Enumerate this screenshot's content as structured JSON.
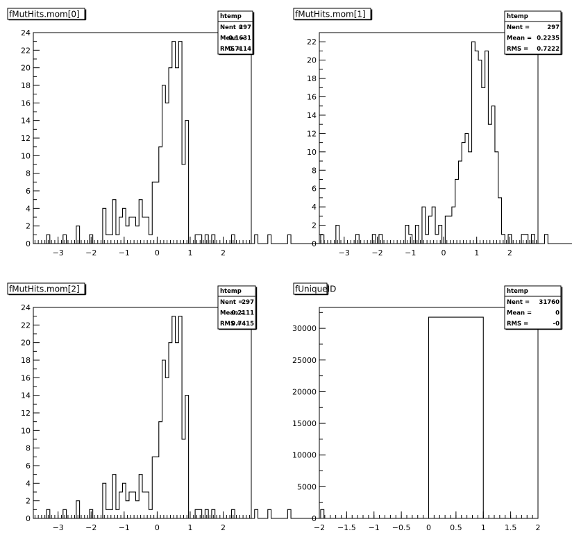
{
  "chart_data": [
    {
      "type": "histogram",
      "title": "fMutHits.mom[0]",
      "stats": {
        "name": "htemp",
        "nent_label": "Nent",
        "nent": "297",
        "mean_label": "Mean",
        "mean": "0.1631",
        "rms_label": "RMS",
        "rms": "0.7114"
      },
      "xlim": [
        -3.75,
        2.85
      ],
      "ylim": [
        0,
        24
      ],
      "xticks": [
        -3,
        -2,
        -1,
        0,
        1,
        2
      ],
      "yticks": [
        0,
        2,
        4,
        6,
        8,
        10,
        12,
        14,
        16,
        18,
        20,
        22,
        24
      ],
      "bins": {
        "start": -3.35,
        "width": 0.1,
        "counts": [
          1,
          0,
          0,
          0,
          0,
          1,
          0,
          0,
          0,
          2,
          0,
          0,
          0,
          1,
          0,
          0,
          0,
          4,
          1,
          1,
          5,
          1,
          3,
          4,
          2,
          3,
          3,
          2,
          5,
          3,
          3,
          1,
          7,
          7,
          11,
          18,
          16,
          20,
          23,
          20,
          23,
          9,
          14,
          0,
          0,
          1,
          1,
          0,
          1,
          0,
          1,
          0,
          0,
          0,
          0,
          0,
          1,
          0,
          0,
          0,
          0,
          0,
          0,
          1,
          0,
          0,
          0,
          1,
          0,
          0,
          0,
          0,
          0,
          1,
          0,
          0,
          0,
          0,
          0,
          0,
          0,
          0,
          0,
          1
        ]
      }
    },
    {
      "type": "histogram",
      "title": "fMutHits.mom[1]",
      "stats": {
        "name": "htemp",
        "nent_label": "Nent",
        "nent": "297",
        "mean_label": "Mean",
        "mean": "0.2235",
        "rms_label": "RMS",
        "rms": "0.7222"
      },
      "xlim": [
        -3.75,
        2.85
      ],
      "ylim": [
        0,
        23
      ],
      "xticks": [
        -3,
        -2,
        -1,
        0,
        1,
        2
      ],
      "yticks": [
        0,
        2,
        4,
        6,
        8,
        10,
        12,
        14,
        16,
        18,
        20,
        22
      ],
      "bins": {
        "start": -3.25,
        "width": 0.1,
        "counts": [
          2,
          0,
          0,
          0,
          0,
          0,
          1,
          0,
          0,
          0,
          0,
          1,
          0,
          1,
          0,
          0,
          0,
          0,
          0,
          0,
          0,
          2,
          1,
          0,
          2,
          0,
          4,
          1,
          3,
          4,
          1,
          2,
          0,
          3,
          3,
          4,
          7,
          9,
          11,
          12,
          10,
          22,
          21,
          20,
          17,
          21,
          13,
          15,
          10,
          5,
          1,
          0,
          1,
          0,
          0,
          0,
          1,
          1,
          0,
          1,
          0,
          0,
          0,
          1,
          0,
          0,
          0,
          0,
          0,
          0,
          0,
          0,
          1,
          0,
          0,
          0,
          0,
          0,
          1
        ]
      }
    },
    {
      "type": "histogram",
      "title": "fMutHits.mom[2]",
      "stats": {
        "name": "htemp",
        "nent_label": "Nent",
        "nent": "297",
        "mean_label": "Mean",
        "mean": "0.2111",
        "rms_label": "RMS",
        "rms": "0.7415"
      },
      "xlim": [
        -3.75,
        2.85
      ],
      "ylim": [
        0,
        24
      ],
      "xticks": [
        -3,
        -2,
        -1,
        0,
        1,
        2
      ],
      "yticks": [
        0,
        2,
        4,
        6,
        8,
        10,
        12,
        14,
        16,
        18,
        20,
        22,
        24
      ],
      "bins": {
        "start": -3.35,
        "width": 0.1,
        "counts": [
          1,
          0,
          0,
          0,
          0,
          1,
          0,
          0,
          0,
          2,
          0,
          0,
          0,
          1,
          0,
          0,
          0,
          4,
          1,
          1,
          5,
          1,
          3,
          4,
          2,
          3,
          3,
          2,
          5,
          3,
          3,
          1,
          7,
          7,
          11,
          18,
          16,
          20,
          23,
          20,
          23,
          9,
          14,
          0,
          0,
          1,
          1,
          0,
          1,
          0,
          1,
          0,
          0,
          0,
          0,
          0,
          1,
          0,
          0,
          0,
          0,
          0,
          0,
          1,
          0,
          0,
          0,
          1,
          0,
          0,
          0,
          0,
          0,
          1,
          0,
          0,
          0,
          0,
          0,
          0,
          0,
          0,
          0,
          1
        ]
      }
    },
    {
      "type": "histogram",
      "title": "fUniqueID",
      "stats": {
        "name": "htemp",
        "nent_label": "Nent",
        "nent": "31760",
        "mean_label": "Mean",
        "mean": "0",
        "rms_label": "RMS",
        "rms": "-0"
      },
      "xlim": [
        -2,
        2
      ],
      "ylim": [
        0,
        33300
      ],
      "xticks": [
        -2,
        -1.5,
        -1,
        -0.5,
        0,
        0.5,
        1,
        1.5,
        2
      ],
      "yticks": [
        0,
        5000,
        10000,
        15000,
        20000,
        25000,
        30000
      ],
      "bins": {
        "start": 0,
        "width": 1,
        "counts": [
          31760
        ]
      }
    }
  ]
}
